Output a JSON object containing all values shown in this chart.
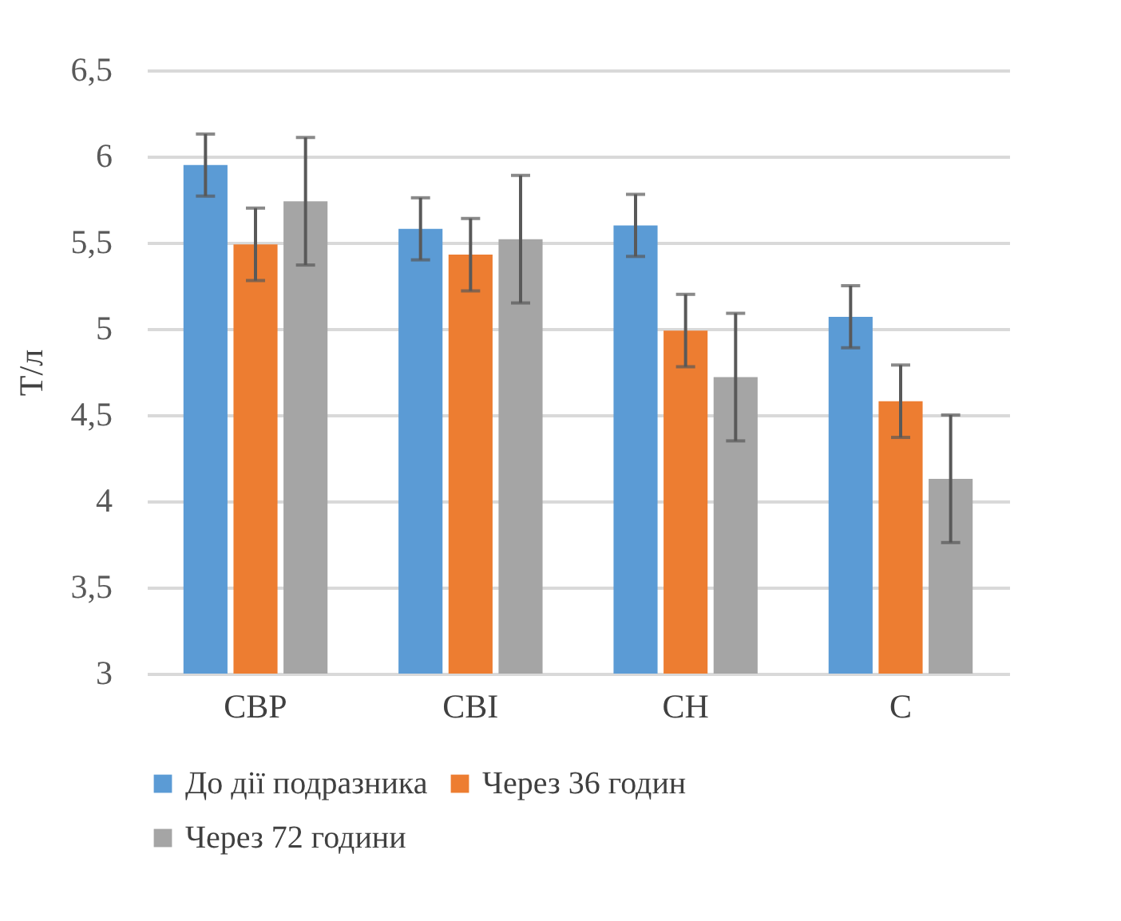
{
  "chart_data": {
    "type": "bar",
    "ylabel": "Т/л",
    "categories": [
      "CBP",
      "CBI",
      "CH",
      "C"
    ],
    "series": [
      {
        "name": "До дії подразника",
        "color": "#5b9bd5",
        "values": [
          5.95,
          5.58,
          5.6,
          5.07
        ],
        "errors": [
          0.18,
          0.18,
          0.18,
          0.18
        ]
      },
      {
        "name": "Через 36 годин",
        "color": "#ed7d31",
        "values": [
          5.49,
          5.43,
          4.99,
          4.58
        ],
        "errors": [
          0.21,
          0.21,
          0.21,
          0.21
        ]
      },
      {
        "name": "Через 72 години",
        "color": "#a5a5a5",
        "values": [
          5.74,
          5.52,
          4.72,
          4.13
        ],
        "errors": [
          0.37,
          0.37,
          0.37,
          0.37
        ]
      }
    ],
    "ylim": [
      3,
      6.5
    ],
    "yticks": [
      {
        "value": 3,
        "label": "3"
      },
      {
        "value": 3.5,
        "label": "3,5"
      },
      {
        "value": 4,
        "label": "4"
      },
      {
        "value": 4.5,
        "label": "4,5"
      },
      {
        "value": 5,
        "label": "5"
      },
      {
        "value": 5.5,
        "label": "5,5"
      },
      {
        "value": 6,
        "label": "6"
      },
      {
        "value": 6.5,
        "label": "6,5"
      }
    ],
    "grid": "y",
    "legend": "bottom"
  }
}
